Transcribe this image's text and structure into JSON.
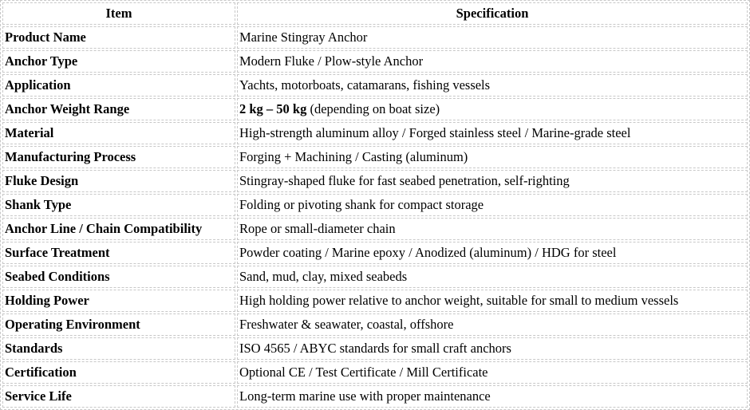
{
  "headers": {
    "item": "Item",
    "spec": "Specification"
  },
  "rows": [
    {
      "item": "Product Name",
      "spec": "Marine Stingray Anchor"
    },
    {
      "item": "Anchor Type",
      "spec": "Modern Fluke / Plow-style Anchor"
    },
    {
      "item": "Application",
      "spec": "Yachts, motorboats, catamarans, fishing vessels"
    },
    {
      "item": "Anchor Weight Range",
      "spec_bold": "2 kg – 50 kg",
      "spec": " (depending on boat size)"
    },
    {
      "item": "Material",
      "spec": "High-strength aluminum alloy / Forged stainless steel / Marine-grade steel"
    },
    {
      "item": "Manufacturing Process",
      "spec": "Forging + Machining / Casting (aluminum)"
    },
    {
      "item": "Fluke Design",
      "spec": "Stingray-shaped fluke for fast seabed penetration, self-righting"
    },
    {
      "item": "Shank Type",
      "spec": "Folding or pivoting shank for compact storage"
    },
    {
      "item": "Anchor Line / Chain Compatibility",
      "spec": "Rope or small-diameter chain"
    },
    {
      "item": "Surface Treatment",
      "spec": "Powder coating / Marine epoxy / Anodized (aluminum) / HDG for steel"
    },
    {
      "item": "Seabed Conditions",
      "spec": "Sand, mud, clay, mixed seabeds"
    },
    {
      "item": "Holding Power",
      "spec": "High holding power relative to anchor weight, suitable for small to medium vessels"
    },
    {
      "item": "Operating Environment",
      "spec": "Freshwater & seawater, coastal, offshore"
    },
    {
      "item": "Standards",
      "spec": "ISO 4565 / ABYC standards for small craft anchors"
    },
    {
      "item": "Certification",
      "spec": "Optional CE / Test Certificate / Mill Certificate"
    },
    {
      "item": "Service Life",
      "spec": "Long-term marine use with proper maintenance"
    }
  ]
}
